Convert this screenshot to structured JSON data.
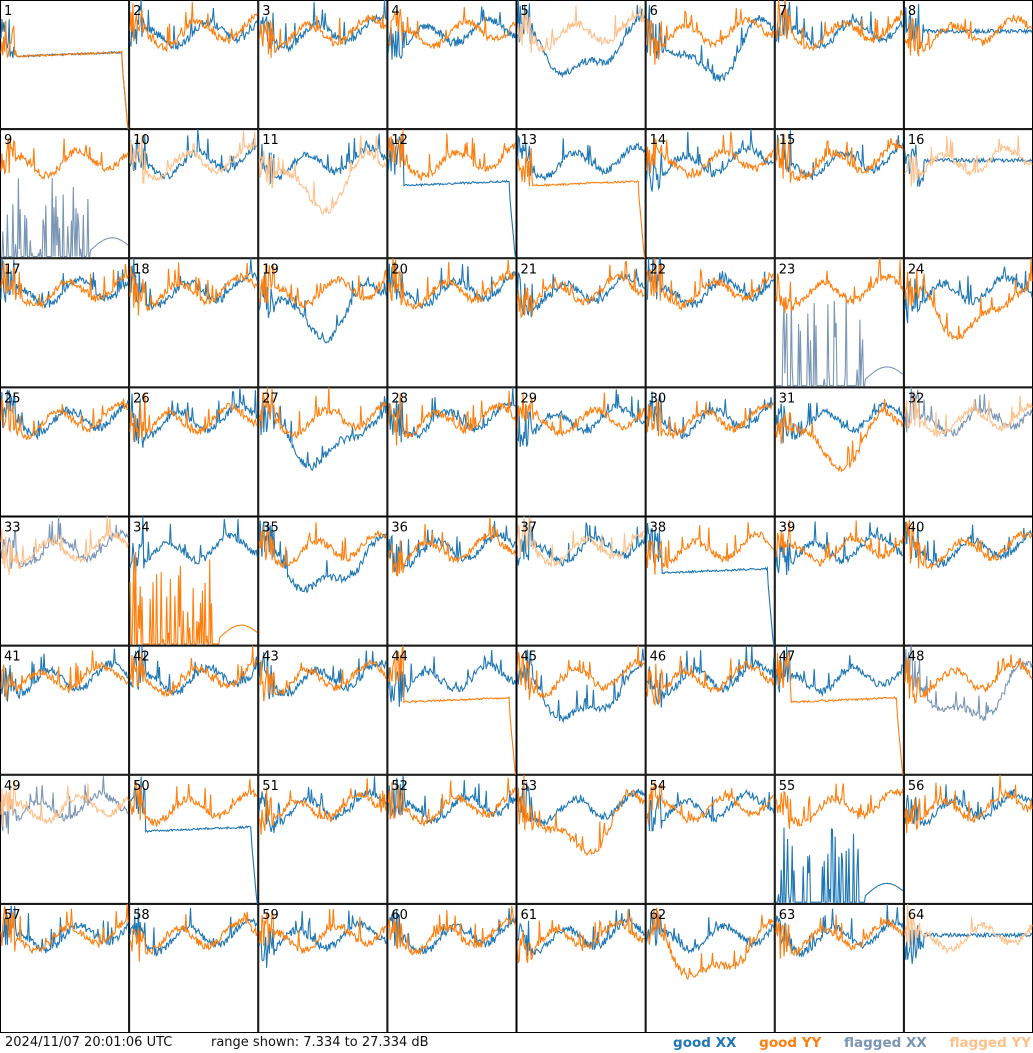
{
  "timestamp": "2024/11/07 20:01:06 UTC",
  "range_text": "range shown: 7.334 to 27.334 dB",
  "legend": {
    "good_xx": "good XX",
    "good_yy": "good YY",
    "flagged_xx": "flagged XX",
    "flagged_yy": "flagged YY"
  },
  "colors": {
    "good_xx": "#1f77b4",
    "good_yy": "#ff7f0e",
    "flagged_xx": "#7a96b4",
    "flagged_yy": "#ffc08a",
    "border": "#000000"
  },
  "chart_data": {
    "type": "line",
    "grid_cols": 8,
    "grid_rows": 8,
    "ylim": [
      7.334,
      27.334
    ],
    "yunit": "dB",
    "panels": [
      {
        "label": "1",
        "xx": "good",
        "yy": "good",
        "shape": "flat_drop"
      },
      {
        "label": "2",
        "xx": "good",
        "yy": "good",
        "shape": "normal"
      },
      {
        "label": "3",
        "xx": "good",
        "yy": "good",
        "shape": "normal"
      },
      {
        "label": "4",
        "xx": "good",
        "yy": "good",
        "shape": "normal"
      },
      {
        "label": "5",
        "xx": "good",
        "yy": "flagged",
        "shape": "dip_xx"
      },
      {
        "label": "6",
        "xx": "good",
        "yy": "good",
        "shape": "dip_xx"
      },
      {
        "label": "7",
        "xx": "good",
        "yy": "good",
        "shape": "normal"
      },
      {
        "label": "8",
        "xx": "good",
        "yy": "good",
        "shape": "flat"
      },
      {
        "label": "9",
        "xx": "flagged",
        "yy": "good",
        "shape": "xx_spikes"
      },
      {
        "label": "10",
        "xx": "good",
        "yy": "flagged",
        "shape": "normal"
      },
      {
        "label": "11",
        "xx": "good",
        "yy": "flagged",
        "shape": "dip_yy"
      },
      {
        "label": "12",
        "xx": "good",
        "yy": "good",
        "shape": "flat_drop_xx"
      },
      {
        "label": "13",
        "xx": "good",
        "yy": "good",
        "shape": "flat_drop_yy"
      },
      {
        "label": "14",
        "xx": "good",
        "yy": "good",
        "shape": "normal"
      },
      {
        "label": "15",
        "xx": "good",
        "yy": "good",
        "shape": "normal"
      },
      {
        "label": "16",
        "xx": "good",
        "yy": "flagged",
        "shape": "flat"
      },
      {
        "label": "17",
        "xx": "good",
        "yy": "good",
        "shape": "normal"
      },
      {
        "label": "18",
        "xx": "good",
        "yy": "good",
        "shape": "normal"
      },
      {
        "label": "19",
        "xx": "good",
        "yy": "good",
        "shape": "dip_xx"
      },
      {
        "label": "20",
        "xx": "good",
        "yy": "good",
        "shape": "normal"
      },
      {
        "label": "21",
        "xx": "good",
        "yy": "good",
        "shape": "normal"
      },
      {
        "label": "22",
        "xx": "good",
        "yy": "good",
        "shape": "normal"
      },
      {
        "label": "23",
        "xx": "flagged",
        "yy": "good",
        "shape": "xx_spikes"
      },
      {
        "label": "24",
        "xx": "good",
        "yy": "good",
        "shape": "dip_yy"
      },
      {
        "label": "25",
        "xx": "good",
        "yy": "good",
        "shape": "normal"
      },
      {
        "label": "26",
        "xx": "good",
        "yy": "good",
        "shape": "normal"
      },
      {
        "label": "27",
        "xx": "good",
        "yy": "good",
        "shape": "dip_xx"
      },
      {
        "label": "28",
        "xx": "good",
        "yy": "good",
        "shape": "normal"
      },
      {
        "label": "29",
        "xx": "good",
        "yy": "good",
        "shape": "normal"
      },
      {
        "label": "30",
        "xx": "good",
        "yy": "good",
        "shape": "normal"
      },
      {
        "label": "31",
        "xx": "good",
        "yy": "good",
        "shape": "dip_yy"
      },
      {
        "label": "32",
        "xx": "flagged",
        "yy": "flagged",
        "shape": "normal"
      },
      {
        "label": "33",
        "xx": "flagged",
        "yy": "flagged",
        "shape": "normal"
      },
      {
        "label": "34",
        "xx": "good",
        "yy": "good",
        "shape": "yy_spikes"
      },
      {
        "label": "35",
        "xx": "good",
        "yy": "good",
        "shape": "dip_xx"
      },
      {
        "label": "36",
        "xx": "good",
        "yy": "good",
        "shape": "normal"
      },
      {
        "label": "37",
        "xx": "good",
        "yy": "flagged",
        "shape": "normal"
      },
      {
        "label": "38",
        "xx": "good",
        "yy": "good",
        "shape": "flat_drop_xx"
      },
      {
        "label": "39",
        "xx": "good",
        "yy": "good",
        "shape": "normal"
      },
      {
        "label": "40",
        "xx": "good",
        "yy": "good",
        "shape": "normal"
      },
      {
        "label": "41",
        "xx": "good",
        "yy": "good",
        "shape": "normal"
      },
      {
        "label": "42",
        "xx": "good",
        "yy": "good",
        "shape": "normal"
      },
      {
        "label": "43",
        "xx": "good",
        "yy": "good",
        "shape": "normal"
      },
      {
        "label": "44",
        "xx": "good",
        "yy": "good",
        "shape": "flat_drop_yy"
      },
      {
        "label": "45",
        "xx": "good",
        "yy": "good",
        "shape": "dip_xx"
      },
      {
        "label": "46",
        "xx": "good",
        "yy": "good",
        "shape": "normal"
      },
      {
        "label": "47",
        "xx": "good",
        "yy": "good",
        "shape": "flat_drop_yy"
      },
      {
        "label": "48",
        "xx": "flagged",
        "yy": "good",
        "shape": "dip_xx"
      },
      {
        "label": "49",
        "xx": "flagged",
        "yy": "flagged",
        "shape": "normal"
      },
      {
        "label": "50",
        "xx": "good",
        "yy": "good",
        "shape": "flat_drop_xx"
      },
      {
        "label": "51",
        "xx": "good",
        "yy": "good",
        "shape": "normal"
      },
      {
        "label": "52",
        "xx": "good",
        "yy": "good",
        "shape": "normal"
      },
      {
        "label": "53",
        "xx": "good",
        "yy": "good",
        "shape": "dip_yy"
      },
      {
        "label": "54",
        "xx": "good",
        "yy": "good",
        "shape": "normal"
      },
      {
        "label": "55",
        "xx": "good",
        "yy": "good",
        "shape": "xx_spikes"
      },
      {
        "label": "56",
        "xx": "good",
        "yy": "good",
        "shape": "normal"
      },
      {
        "label": "57",
        "xx": "good",
        "yy": "good",
        "shape": "normal"
      },
      {
        "label": "58",
        "xx": "good",
        "yy": "good",
        "shape": "normal"
      },
      {
        "label": "59",
        "xx": "good",
        "yy": "good",
        "shape": "normal"
      },
      {
        "label": "60",
        "xx": "good",
        "yy": "good",
        "shape": "normal"
      },
      {
        "label": "61",
        "xx": "good",
        "yy": "good",
        "shape": "normal"
      },
      {
        "label": "62",
        "xx": "good",
        "yy": "good",
        "shape": "dip_yy"
      },
      {
        "label": "63",
        "xx": "good",
        "yy": "good",
        "shape": "normal"
      },
      {
        "label": "64",
        "xx": "good",
        "yy": "flagged",
        "shape": "flat"
      }
    ]
  }
}
